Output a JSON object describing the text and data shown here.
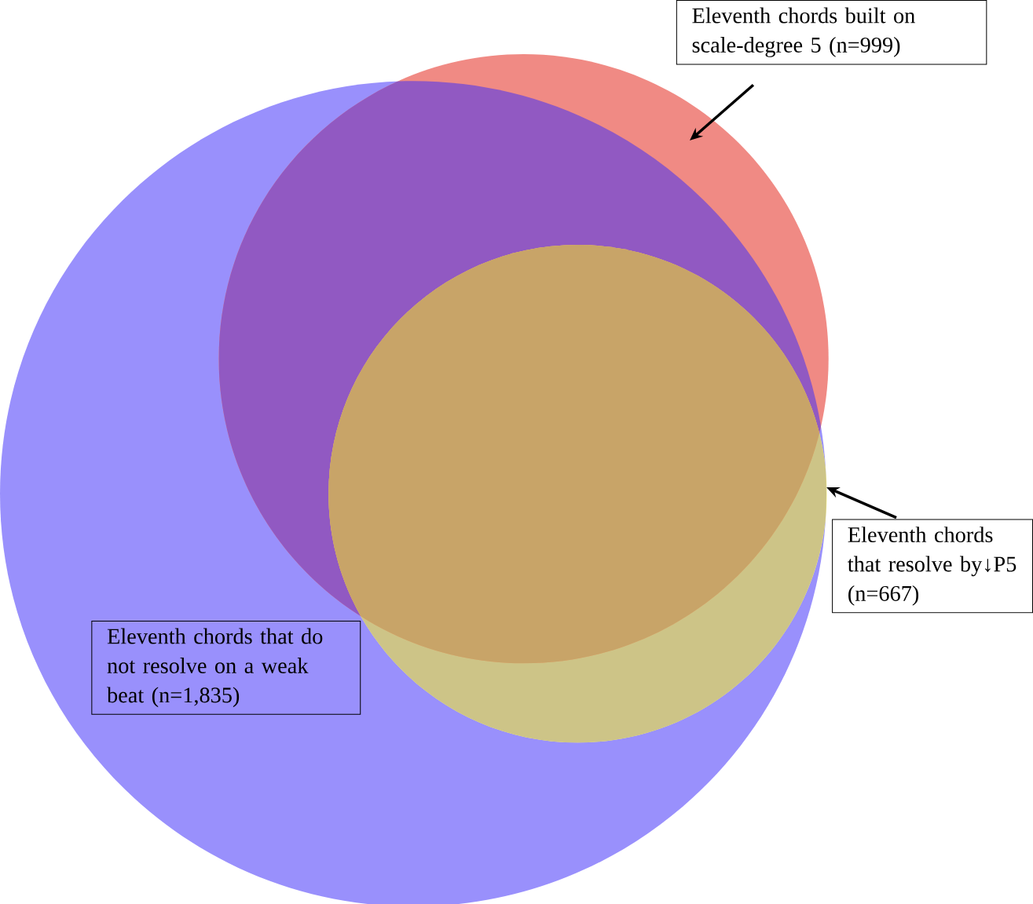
{
  "chart_data": {
    "type": "other",
    "categories": [
      "Eleventh chords that do not resolve on a weak beat",
      "Eleventh chords built on scale-degree 5",
      "Eleventh chords that resolve by↓P5"
    ],
    "values": [
      1835,
      999,
      667
    ],
    "value_labels": [
      "(n=1,835)",
      "(n=999)",
      "(n=667)"
    ],
    "colors": [
      "#9990fc",
      "#f08a84",
      "#fdfa8c"
    ]
  }
}
